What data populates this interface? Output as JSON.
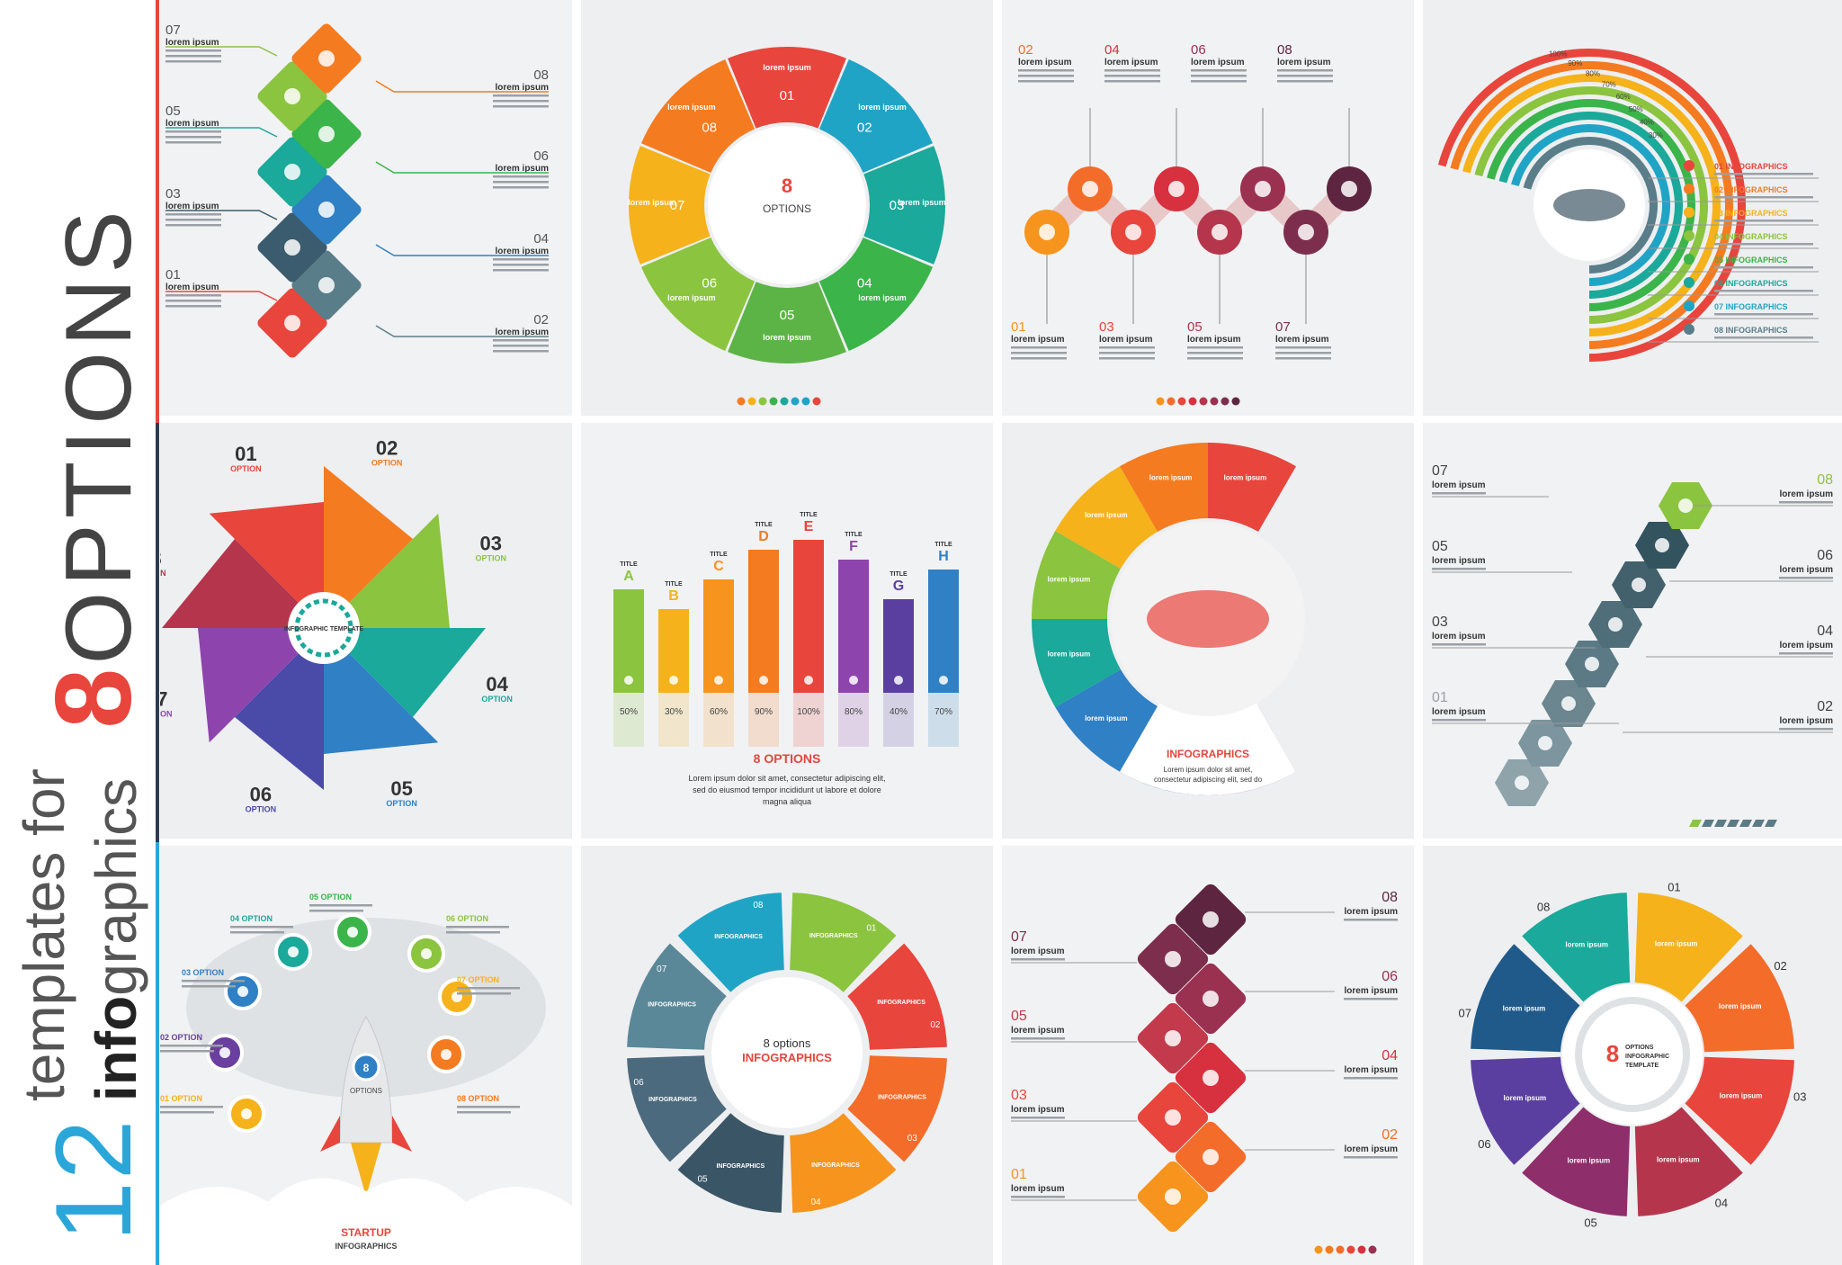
{
  "title": {
    "number": "12",
    "line1": "templates for",
    "bold": "info",
    "rest": "graphics",
    "eight": "8",
    "options": "OPTIONS"
  },
  "lorem": "lorem ipsum",
  "lorem_cap": "Lorem ipsum",
  "body_text": "Lorem ipsum dolor sit amet, consectetur adipiscing elit, sed do eiusmod tempor incididunt ut labore et dolore magna aliqua",
  "nums": [
    "01",
    "02",
    "03",
    "04",
    "05",
    "06",
    "07",
    "08"
  ],
  "p2_center": {
    "num": "8",
    "label": "OPTIONS"
  },
  "p4_labels": [
    "01 INFOGRAPHICS",
    "02 INFOGRAPHICS",
    "03 INFOGRAPHICS",
    "04 INFOGRAPHICS",
    "05 INFOGRAPHICS",
    "06 INFOGRAPHICS",
    "07 INFOGRAPHICS",
    "08 INFOGRAPHICS"
  ],
  "p4_percents": [
    "100%",
    "90%",
    "80%",
    "70%",
    "60%",
    "50%",
    "40%",
    "30%"
  ],
  "p5_center": "INFOGRAPHIC TEMPLATE",
  "p5_option": "OPTION",
  "p6": {
    "letters": [
      "A",
      "B",
      "C",
      "D",
      "E",
      "F",
      "G",
      "H"
    ],
    "tag": "TITLE",
    "percents": [
      "50%",
      "30%",
      "60%",
      "90%",
      "100%",
      "80%",
      "40%",
      "70%"
    ],
    "heading": "8 OPTIONS",
    "text": "Lorem ipsum dolor sit amet, consectetur adipiscing elit, sed do eiusmod tempor incididunt ut labore et dolore magna aliqua"
  },
  "p7": {
    "heading": "INFOGRAPHICS",
    "text": "Lorem ipsum dolor sit amet, consectetur adipiscing elit, sed do eiusmod tempor incididunt ut labore et dolore magna aliqua"
  },
  "p9": {
    "options": [
      "01 OPTION",
      "02 OPTION",
      "03 OPTION",
      "04 OPTION",
      "05 OPTION",
      "06 OPTION",
      "07 OPTION",
      "08 OPTION"
    ],
    "rocket_num": "8",
    "rocket_label": "OPTIONS",
    "startup": "STARTUP",
    "startup_sub": "INFOGRAPHICS"
  },
  "p10": {
    "center_top": "8 options",
    "center_bottom": "INFOGRAPHICS",
    "seg_label": "INFOGRAPHICS"
  },
  "p12": {
    "num": "8",
    "line1": "OPTIONS",
    "line2": "INFOGRAPHIC",
    "line3": "TEMPLATE"
  },
  "colors": {
    "accent_blue": "#2aa6d9",
    "accent_red": "#e8453c",
    "rainbow": [
      "#e8453c",
      "#f47b20",
      "#f6b21a",
      "#8bc43f",
      "#3bb44a",
      "#1aa99a",
      "#20a4c6",
      "#8e44ad"
    ],
    "maroon": [
      "#f7941d",
      "#f36c2a",
      "#e8453c",
      "#d7303f",
      "#b5364c",
      "#9a3150",
      "#7e2e4d",
      "#5e2540"
    ],
    "teal": [
      "#2c5f6e",
      "#3a7280",
      "#4c8493",
      "#1f4d5a"
    ]
  }
}
